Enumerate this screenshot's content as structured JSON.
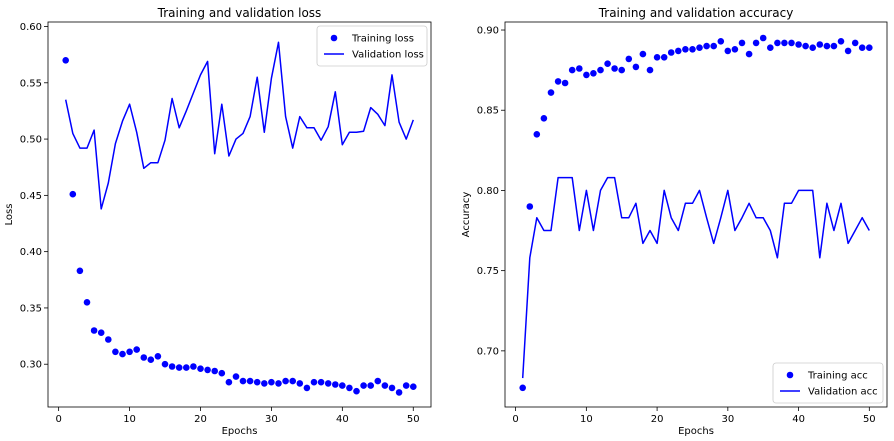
{
  "chart_data": [
    {
      "type": "line",
      "title": "Training and validation loss",
      "xlabel": "Epochs",
      "ylabel": "Loss",
      "xlim": [
        -1.5,
        52.5
      ],
      "ylim": [
        0.262,
        0.604
      ],
      "xticks": [
        0,
        10,
        20,
        30,
        40,
        50
      ],
      "xtick_labels": [
        "0",
        "10",
        "20",
        "30",
        "40",
        "50"
      ],
      "yticks": [
        0.3,
        0.35,
        0.4,
        0.45,
        0.5,
        0.55,
        0.6
      ],
      "ytick_labels": [
        "0.30",
        "0.35",
        "0.40",
        "0.45",
        "0.50",
        "0.55",
        "0.60"
      ],
      "legend_position": "top-right",
      "color": "#0000ff",
      "series": [
        {
          "name": "Training loss",
          "style": "points",
          "x": [
            1,
            2,
            3,
            4,
            5,
            6,
            7,
            8,
            9,
            10,
            11,
            12,
            13,
            14,
            15,
            16,
            17,
            18,
            19,
            20,
            21,
            22,
            23,
            24,
            25,
            26,
            27,
            28,
            29,
            30,
            31,
            32,
            33,
            34,
            35,
            36,
            37,
            38,
            39,
            40,
            41,
            42,
            43,
            44,
            45,
            46,
            47,
            48,
            49,
            50
          ],
          "values": [
            0.57,
            0.451,
            0.383,
            0.355,
            0.33,
            0.328,
            0.322,
            0.311,
            0.309,
            0.311,
            0.313,
            0.306,
            0.304,
            0.307,
            0.3,
            0.298,
            0.297,
            0.297,
            0.298,
            0.296,
            0.295,
            0.294,
            0.292,
            0.284,
            0.289,
            0.285,
            0.285,
            0.284,
            0.283,
            0.284,
            0.283,
            0.285,
            0.285,
            0.283,
            0.279,
            0.284,
            0.284,
            0.283,
            0.282,
            0.281,
            0.279,
            0.276,
            0.281,
            0.281,
            0.285,
            0.281,
            0.279,
            0.275,
            0.281,
            0.28
          ]
        },
        {
          "name": "Validation loss",
          "style": "line",
          "x": [
            1,
            2,
            3,
            4,
            5,
            6,
            7,
            8,
            9,
            10,
            11,
            12,
            13,
            14,
            15,
            16,
            17,
            18,
            19,
            20,
            21,
            22,
            23,
            24,
            25,
            26,
            27,
            28,
            29,
            30,
            31,
            32,
            33,
            34,
            35,
            36,
            37,
            38,
            39,
            40,
            41,
            42,
            43,
            44,
            45,
            46,
            47,
            48,
            49,
            50
          ],
          "values": [
            0.535,
            0.505,
            0.492,
            0.492,
            0.508,
            0.438,
            0.461,
            0.496,
            0.516,
            0.531,
            0.506,
            0.474,
            0.479,
            0.479,
            0.499,
            0.536,
            0.51,
            0.525,
            0.541,
            0.557,
            0.569,
            0.487,
            0.531,
            0.485,
            0.5,
            0.505,
            0.52,
            0.555,
            0.506,
            0.554,
            0.586,
            0.52,
            0.492,
            0.52,
            0.51,
            0.51,
            0.499,
            0.511,
            0.542,
            0.495,
            0.506,
            0.506,
            0.507,
            0.528,
            0.522,
            0.512,
            0.557,
            0.515,
            0.5,
            0.517
          ]
        }
      ]
    },
    {
      "type": "line",
      "title": "Training and validation accuracy",
      "xlabel": "Epochs",
      "ylabel": "Accuracy",
      "xlim": [
        -1.5,
        52.5
      ],
      "ylim": [
        0.665,
        0.905
      ],
      "xticks": [
        0,
        10,
        20,
        30,
        40,
        50
      ],
      "xtick_labels": [
        "0",
        "10",
        "20",
        "30",
        "40",
        "50"
      ],
      "yticks": [
        0.7,
        0.75,
        0.8,
        0.85,
        0.9
      ],
      "ytick_labels": [
        "0.70",
        "0.75",
        "0.80",
        "0.85",
        "0.90"
      ],
      "legend_position": "bottom-right",
      "color": "#0000ff",
      "series": [
        {
          "name": "Training acc",
          "style": "points",
          "x": [
            1,
            2,
            3,
            4,
            5,
            6,
            7,
            8,
            9,
            10,
            11,
            12,
            13,
            14,
            15,
            16,
            17,
            18,
            19,
            20,
            21,
            22,
            23,
            24,
            25,
            26,
            27,
            28,
            29,
            30,
            31,
            32,
            33,
            34,
            35,
            36,
            37,
            38,
            39,
            40,
            41,
            42,
            43,
            44,
            45,
            46,
            47,
            48,
            49,
            50
          ],
          "values": [
            0.677,
            0.79,
            0.835,
            0.845,
            0.861,
            0.868,
            0.867,
            0.875,
            0.876,
            0.872,
            0.873,
            0.875,
            0.879,
            0.876,
            0.875,
            0.882,
            0.877,
            0.885,
            0.875,
            0.883,
            0.883,
            0.886,
            0.887,
            0.888,
            0.888,
            0.889,
            0.89,
            0.89,
            0.893,
            0.887,
            0.888,
            0.892,
            0.885,
            0.892,
            0.895,
            0.889,
            0.892,
            0.892,
            0.892,
            0.891,
            0.89,
            0.889,
            0.891,
            0.89,
            0.89,
            0.893,
            0.887,
            0.892,
            0.889,
            0.889
          ]
        },
        {
          "name": "Validation acc",
          "style": "line",
          "x": [
            1,
            2,
            3,
            4,
            5,
            6,
            7,
            8,
            9,
            10,
            11,
            12,
            13,
            14,
            15,
            16,
            17,
            18,
            19,
            20,
            21,
            22,
            23,
            24,
            25,
            26,
            27,
            28,
            29,
            30,
            31,
            32,
            33,
            34,
            35,
            36,
            37,
            38,
            39,
            40,
            41,
            42,
            43,
            44,
            45,
            46,
            47,
            48,
            49,
            50
          ],
          "values": [
            0.683,
            0.758,
            0.783,
            0.775,
            0.775,
            0.808,
            0.808,
            0.808,
            0.775,
            0.8,
            0.775,
            0.8,
            0.808,
            0.808,
            0.783,
            0.783,
            0.792,
            0.767,
            0.775,
            0.767,
            0.8,
            0.783,
            0.775,
            0.792,
            0.792,
            0.8,
            0.783,
            0.767,
            0.783,
            0.8,
            0.775,
            0.783,
            0.792,
            0.783,
            0.783,
            0.775,
            0.758,
            0.792,
            0.792,
            0.8,
            0.8,
            0.8,
            0.758,
            0.792,
            0.775,
            0.792,
            0.767,
            0.775,
            0.783,
            0.775
          ]
        }
      ]
    }
  ]
}
